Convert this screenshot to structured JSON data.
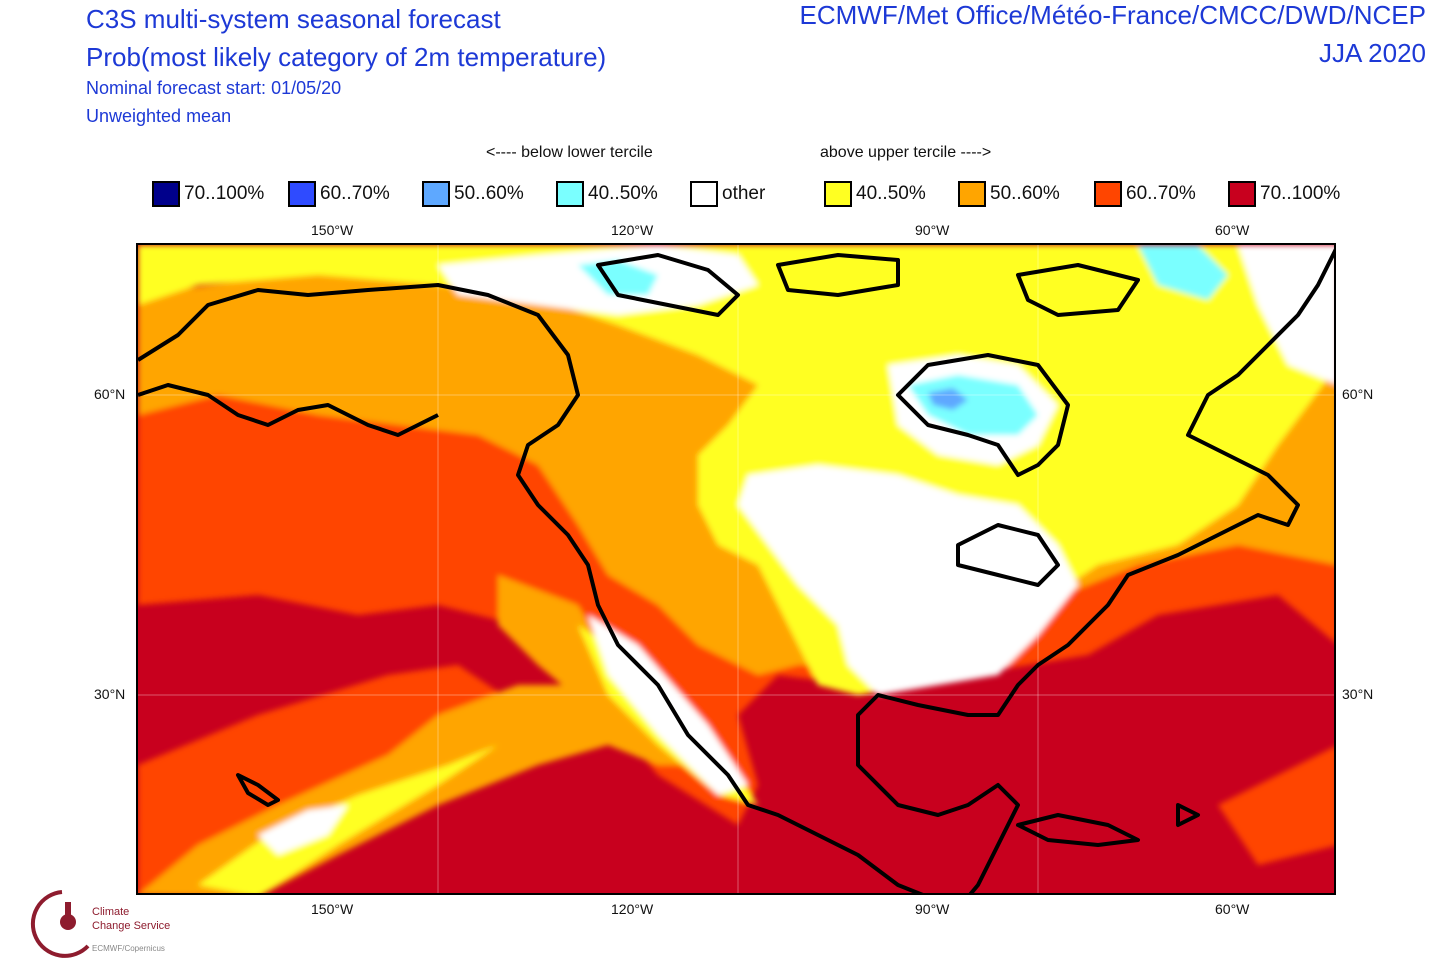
{
  "title": {
    "line1": "C3S multi-system seasonal forecast",
    "line2": "Prob(most likely category of 2m temperature)",
    "line3": "Nominal forecast start: 01/05/20",
    "line4": "Unweighted mean",
    "systems": "ECMWF/Met Office/Météo-France/CMCC/DWD/NCEP",
    "period": "JJA 2020"
  },
  "legend": {
    "below_label": "<---- below lower tercile",
    "above_label": "above upper tercile ---->",
    "items": [
      {
        "label": "70..100%",
        "color": "#00008b"
      },
      {
        "label": "60..70%",
        "color": "#2f4bff"
      },
      {
        "label": "50..60%",
        "color": "#5ea8ff"
      },
      {
        "label": "40..50%",
        "color": "#7affff"
      },
      {
        "label": "other",
        "color": "#ffffff"
      },
      {
        "label": "40..50%",
        "color": "#ffff22"
      },
      {
        "label": "50..60%",
        "color": "#ffa500"
      },
      {
        "label": "60..70%",
        "color": "#ff4500"
      },
      {
        "label": "70..100%",
        "color": "#c8001e"
      }
    ]
  },
  "axes": {
    "lon_ticks": [
      "150°W",
      "120°W",
      "90°W",
      "60°W"
    ],
    "lat_ticks": [
      "60°N",
      "30°N"
    ]
  },
  "logo": {
    "text1": "Climate",
    "text2": "Change Service",
    "text3": "ECMWF/Copernicus"
  }
}
